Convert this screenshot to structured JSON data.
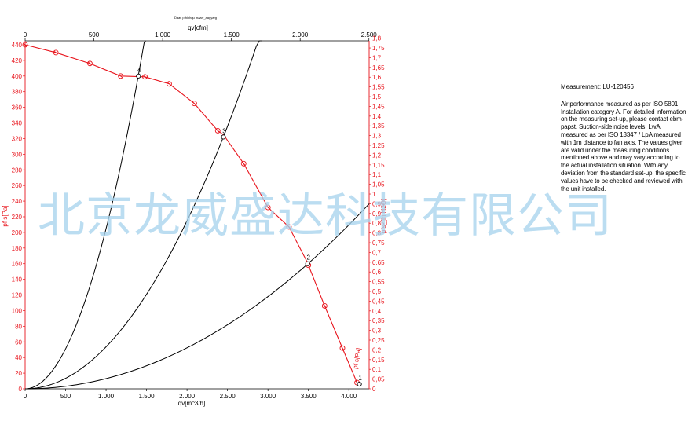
{
  "chart_data": {
    "type": "line",
    "title": "Daas p hiphqu maarr_aagyarg",
    "xlabel_bottom": "qv[m^3/h]",
    "xlabel_top": "qv[cfm]",
    "ylabel_left": "pf s[Pa]",
    "ylabel_right": "pfs_[in H2O]",
    "curve_label": "pf s[Pa]",
    "x_range": [
      0,
      4250
    ],
    "y_range": [
      0,
      445
    ],
    "x_ticks": [
      0,
      500,
      1000,
      1500,
      2000,
      2500,
      3000,
      3500,
      4000
    ],
    "x_tick_labels": [
      "0",
      "500",
      "1.000",
      "1.500",
      "2.000",
      "2.500",
      "3.000",
      "3.500",
      "4.000"
    ],
    "x_top_ticks": [
      0,
      500,
      1000,
      1500,
      2000,
      2500
    ],
    "x_top_tick_labels": [
      "0",
      "500",
      "1.000",
      "1.500",
      "2.000",
      "2.500"
    ],
    "y_ticks": [
      0,
      20,
      40,
      60,
      80,
      100,
      120,
      140,
      160,
      180,
      200,
      220,
      240,
      260,
      280,
      300,
      320,
      340,
      360,
      380,
      400,
      420,
      440
    ],
    "y_right_ticks": [
      "0",
      "0,05",
      "0,1",
      "0,15",
      "0,2",
      "0,25",
      "0,3",
      "0,35",
      "0,4",
      "0,45",
      "0,5",
      "0,55",
      "0,6",
      "0,65",
      "0,7",
      "0,75",
      "0,8",
      "0,85",
      "0,9",
      "0,95",
      "1",
      "1,05",
      "1,1",
      "1,15",
      "1,2",
      "1,25",
      "1,3",
      "1,35",
      "1,4",
      "1,45",
      "1,5",
      "1,55",
      "1,6",
      "1,65",
      "1,7",
      "1,75",
      "1,8"
    ],
    "fan_curve": {
      "color": "#e8141c",
      "points": [
        [
          0,
          440
        ],
        [
          380,
          430
        ],
        [
          800,
          416
        ],
        [
          1180,
          400
        ],
        [
          1480,
          399
        ],
        [
          1780,
          390
        ],
        [
          2090,
          365
        ],
        [
          2380,
          330
        ],
        [
          2450,
          325
        ],
        [
          2700,
          288
        ],
        [
          3000,
          232
        ],
        [
          3260,
          207
        ],
        [
          3480,
          163
        ],
        [
          3500,
          158
        ],
        [
          3700,
          106
        ],
        [
          3920,
          52
        ],
        [
          4100,
          8
        ]
      ],
      "markers": [
        [
          0,
          440
        ],
        [
          380,
          430
        ],
        [
          800,
          416
        ],
        [
          1180,
          400
        ],
        [
          1480,
          399
        ],
        [
          1780,
          390
        ],
        [
          2090,
          365
        ],
        [
          2380,
          330
        ],
        [
          2700,
          288
        ],
        [
          3000,
          232
        ],
        [
          3260,
          207
        ],
        [
          3500,
          158
        ],
        [
          3700,
          106
        ],
        [
          3920,
          52
        ],
        [
          4100,
          8
        ]
      ]
    },
    "system_curves": {
      "color": "#000000",
      "k_values": [
        0.0002048,
        5.37e-05,
        1.31e-05
      ],
      "x_end": [
        1490,
        2930,
        4250
      ]
    },
    "operating_points": [
      {
        "label": "4",
        "x": 1400,
        "y": 400
      },
      {
        "label": "3",
        "x": 2450,
        "y": 322
      },
      {
        "label": "2",
        "x": 3490,
        "y": 160
      },
      {
        "label": "1",
        "x": 4130,
        "y": 6
      }
    ]
  },
  "notes": {
    "measurement": "Measurement: LU-120456",
    "text": "Air performance measured as per ISO 5801 Installation category A. For detailed information on the measuring set-up, please contact ebm-papst. Suction-side noise levels: LwA measured as per ISO 13347 / LpA measured with 1m distance to fan axis. The values given are valid under the measuring conditions mentioned above and may vary according to the actual installation situation. With any deviation from the standard set-up, the specific values have to be checked and reviewed with the unit installed."
  },
  "watermark": "北京龙威盛达科技有限公司"
}
